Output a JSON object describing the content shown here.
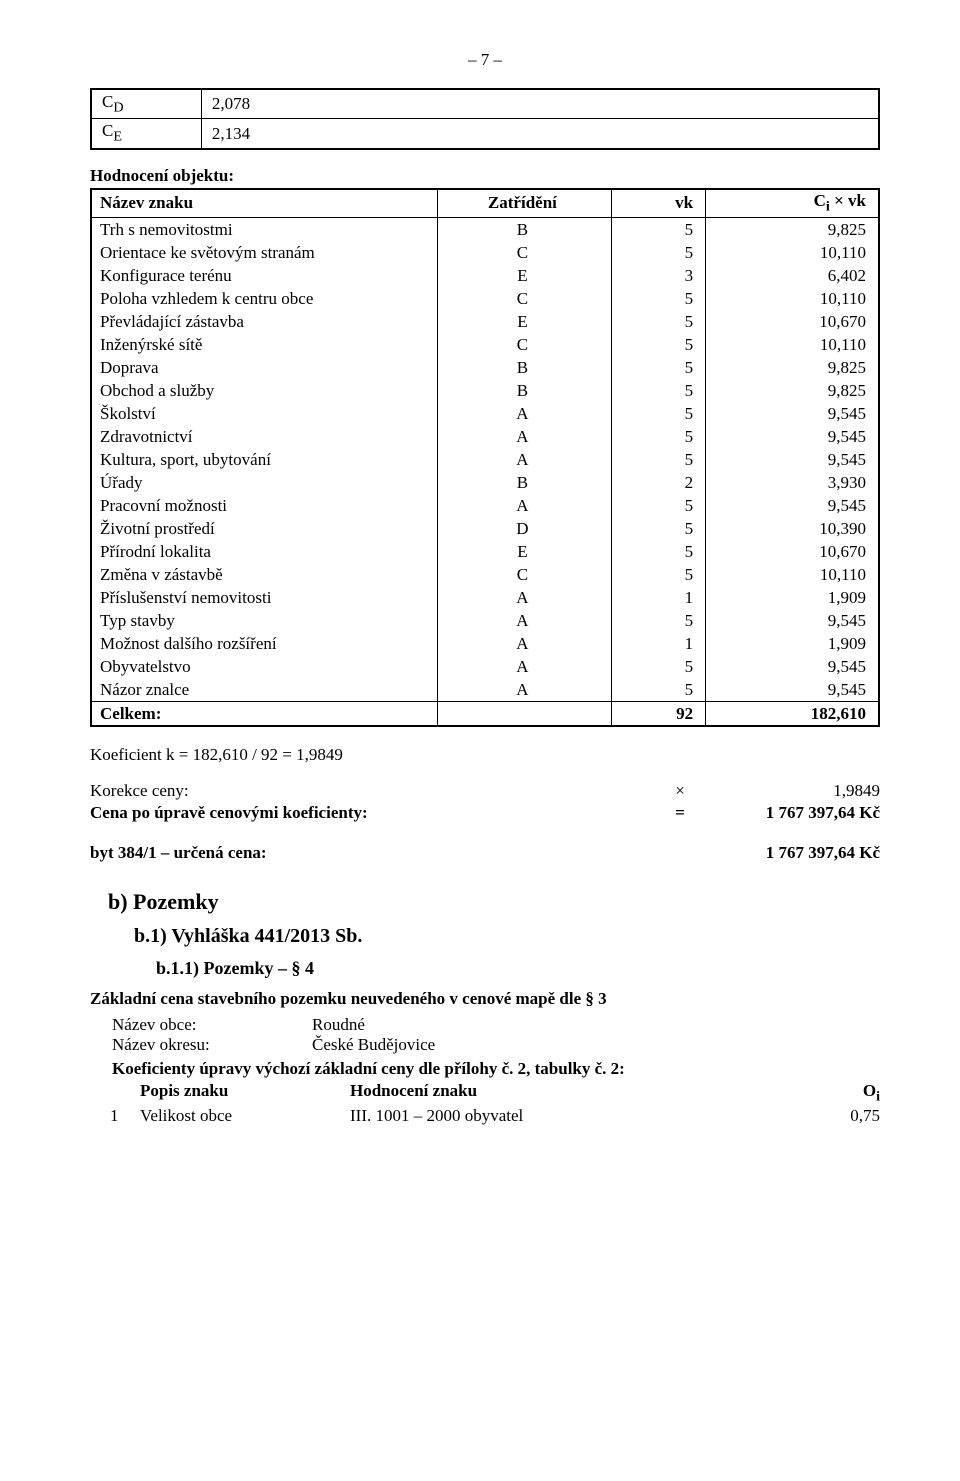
{
  "page_number": "– 7 –",
  "box_table": {
    "rows": [
      {
        "label": "CD",
        "sub": "D",
        "value": "2,078"
      },
      {
        "label": "CE",
        "sub": "E",
        "value": "2,134"
      }
    ]
  },
  "section1_title": "Hodnocení objektu:",
  "main_table": {
    "headers": [
      "Název znaku",
      "Zatřídění",
      "vk",
      "Ci × vk"
    ],
    "header_sub": "i",
    "rows": [
      [
        "Trh s nemovitostmi",
        "B",
        "5",
        "9,825"
      ],
      [
        "Orientace ke světovým stranám",
        "C",
        "5",
        "10,110"
      ],
      [
        "Konfigurace terénu",
        "E",
        "3",
        "6,402"
      ],
      [
        "Poloha vzhledem k centru obce",
        "C",
        "5",
        "10,110"
      ],
      [
        "Převládající zástavba",
        "E",
        "5",
        "10,670"
      ],
      [
        "Inženýrské sítě",
        "C",
        "5",
        "10,110"
      ],
      [
        "Doprava",
        "B",
        "5",
        "9,825"
      ],
      [
        "Obchod a služby",
        "B",
        "5",
        "9,825"
      ],
      [
        "Školství",
        "A",
        "5",
        "9,545"
      ],
      [
        "Zdravotnictví",
        "A",
        "5",
        "9,545"
      ],
      [
        "Kultura, sport, ubytování",
        "A",
        "5",
        "9,545"
      ],
      [
        "Úřady",
        "B",
        "2",
        "3,930"
      ],
      [
        "Pracovní možnosti",
        "A",
        "5",
        "9,545"
      ],
      [
        "Životní prostředí",
        "D",
        "5",
        "10,390"
      ],
      [
        "Přírodní lokalita",
        "E",
        "5",
        "10,670"
      ],
      [
        "Změna v zástavbě",
        "C",
        "5",
        "10,110"
      ],
      [
        "Příslušenství nemovitosti",
        "A",
        "1",
        "1,909"
      ],
      [
        "Typ stavby",
        "A",
        "5",
        "9,545"
      ],
      [
        "Možnost dalšího rozšíření",
        "A",
        "1",
        "1,909"
      ],
      [
        "Obyvatelstvo",
        "A",
        "5",
        "9,545"
      ],
      [
        "Názor znalce",
        "A",
        "5",
        "9,545"
      ]
    ],
    "total": [
      "Celkem:",
      "",
      "92",
      "182,610"
    ]
  },
  "koef_line": "Koeficient k = 182,610 / 92 = 1,9849",
  "korekce": {
    "label": "Korekce ceny:",
    "sym": "×",
    "value": "1,9849"
  },
  "cena_po": {
    "label": "Cena po úpravě cenovými koeficienty:",
    "sym": "=",
    "value": "1 767 397,64 Kč"
  },
  "byt": {
    "label": "byt 384/1 – určená cena:",
    "value": "1 767 397,64 Kč"
  },
  "sec_b": "b)  Pozemky",
  "sec_b1": "b.1)  Vyhláška 441/2013 Sb.",
  "sec_b11": "b.1.1)  Pozemky – § 4",
  "zakladni_title": "Základní cena stavebního pozemku neuvedeného v cenové mapě dle § 3",
  "nazev_obce": {
    "label": "Název obce:",
    "value": "Roudné"
  },
  "nazev_okresu": {
    "label": "Název okresu:",
    "value": "České Budějovice"
  },
  "koef_upravy": "Koeficienty úpravy výchozí základní ceny dle přílohy č. 2, tabulky č. 2:",
  "popis": {
    "a": "Popis znaku",
    "b": "Hodnocení znaku",
    "c": "Oi",
    "c_sub": "i"
  },
  "row1": {
    "n": "1",
    "a": "Velikost obce",
    "b": "III. 1001 – 2000 obyvatel",
    "c": "0,75"
  }
}
